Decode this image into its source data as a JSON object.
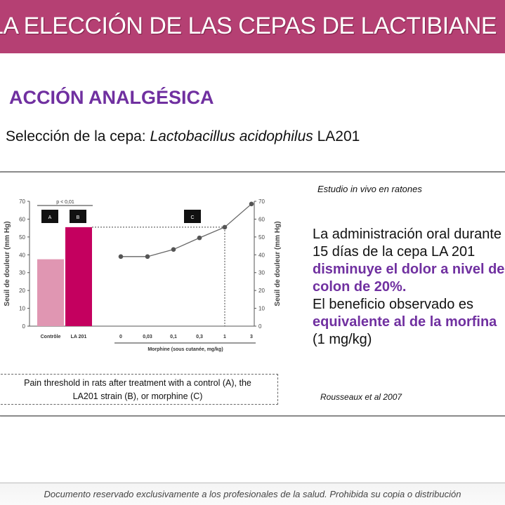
{
  "header": {
    "title": "LA ELECCIÓN DE LAS CEPAS DE LACTIBIANE IB"
  },
  "section_title": "ACCIÓN ANALGÉSICA",
  "subtitle": {
    "prefix": "Selección de la cepa: ",
    "species": "Lactobacillus acidophilus",
    "strain": " LA201"
  },
  "study_note": "Estudio in vivo en ratones",
  "body": {
    "line1": "La administración oral durante",
    "line2": "15 días de la cepa LA 201",
    "line3": "disminuye el dolor a nivel del",
    "line4": "colon de 20%.",
    "line5": "El beneficio observado es",
    "line6": "equivalente al de la morfina",
    "line7": "(1 mg/kg)"
  },
  "caption": {
    "line1": "Pain threshold in rats after treatment with a control (A), the",
    "line2": "LA201 strain  (B), or morphine (C)"
  },
  "reference": "Rousseaux et al 2007",
  "footer": "Documento reservado exclusivamente a los profesionales de la salud. Prohibida su copia o distribución",
  "colors": {
    "header": "#b54073",
    "accent": "#7030a0",
    "control_bar": "#e096b2",
    "la201_bar": "#c4005f",
    "line": "#666666"
  },
  "chart_data": {
    "type": "bar+line",
    "ylabel": "Seuil de douleur (mm Hg)",
    "ylim": [
      0,
      70
    ],
    "yticks": [
      "0",
      "10",
      "20",
      "30",
      "40",
      "50",
      "60",
      "70"
    ],
    "significance": "p < 0,01",
    "bars": {
      "categories": [
        "Contrôle",
        "LA 201"
      ],
      "values": [
        37.5,
        55.5
      ],
      "labels": [
        "A",
        "B"
      ]
    },
    "line": {
      "label": "C",
      "xlabel": "Morphine (sous cutanée, mg/kg)",
      "x": [
        "0",
        "0,03",
        "0,1",
        "0,3",
        "1",
        "3"
      ],
      "values": [
        39,
        39,
        43,
        49.5,
        55.5,
        68.5
      ]
    },
    "reference_line": {
      "y": 55.5,
      "x": "1"
    }
  }
}
